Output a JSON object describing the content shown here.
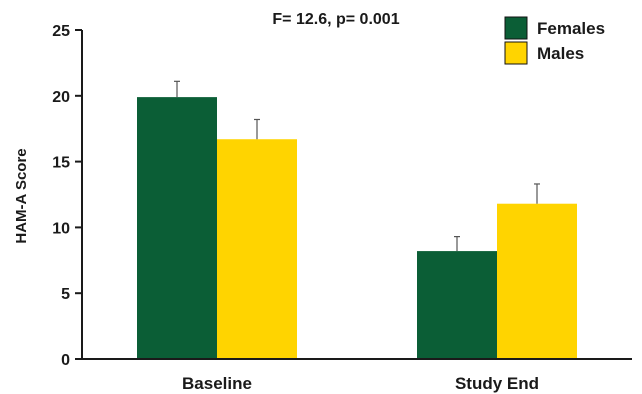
{
  "chart_data": {
    "type": "bar",
    "title": "F= 12.6, p= 0.001",
    "ylabel": "HAM-A Score",
    "xlabel": "",
    "categories": [
      "Baseline",
      "Study End"
    ],
    "series": [
      {
        "name": "Females",
        "color": "#0b5e36",
        "values": [
          19.9,
          8.2
        ],
        "errors": [
          1.2,
          1.1
        ]
      },
      {
        "name": "Males",
        "color": "#ffd400",
        "values": [
          16.7,
          11.8
        ],
        "errors": [
          1.5,
          1.5
        ]
      }
    ],
    "ylim": [
      0,
      25
    ],
    "yticks": [
      0,
      5,
      10,
      15,
      20,
      25
    ],
    "grid": false,
    "legend_position": "top-right",
    "error_bars": "upper",
    "axis_color": "#1a1a1a"
  }
}
